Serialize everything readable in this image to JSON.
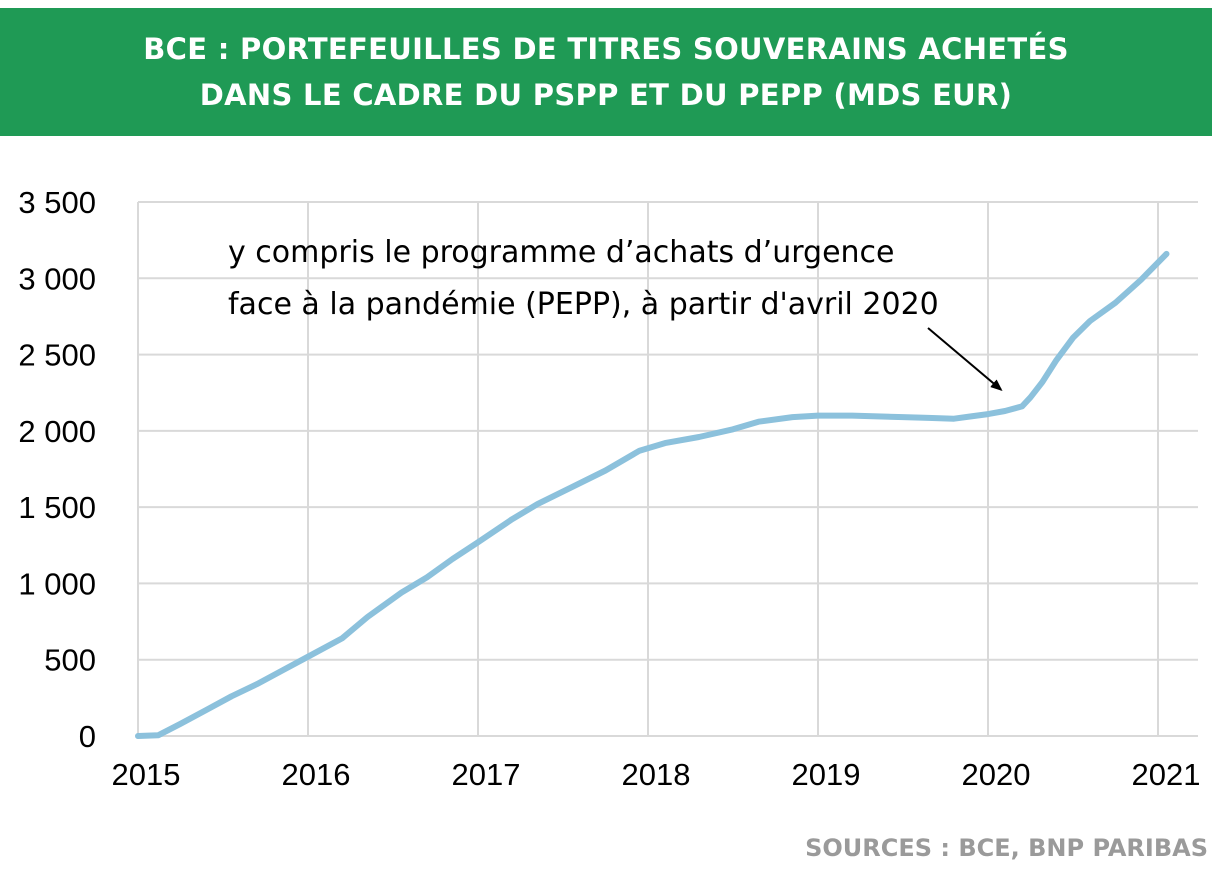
{
  "header": {
    "title_line1": "BCE : PORTEFEUILLES DE TITRES SOUVERAINS ACHETÉS",
    "title_line2": "DANS LE CADRE DU PSPP ET DU PEPP (MDS EUR)"
  },
  "footer": {
    "source": "SOURCES : BCE, BNP PARIBAS"
  },
  "chart_data": {
    "type": "line",
    "title": "BCE : PORTEFEUILLES DE TITRES SOUVERAINS ACHETÉS DANS LE CADRE DU PSPP ET DU PEPP (MDS EUR)",
    "xlabel": "",
    "ylabel": "",
    "xlim": [
      2015,
      2021.1
    ],
    "ylim": [
      0,
      3500
    ],
    "x_ticks": [
      "2015",
      "2016",
      "2017",
      "2018",
      "2019",
      "2020",
      "2021"
    ],
    "y_ticks": [
      "0",
      "500",
      "1 000",
      "1 500",
      "2 000",
      "2 500",
      "3 000",
      "3 500"
    ],
    "grid": true,
    "line_color": "#8cc1dc",
    "series": [
      {
        "name": "",
        "x": [
          2015.0,
          2015.12,
          2015.25,
          2015.4,
          2015.55,
          2015.7,
          2015.85,
          2016.0,
          2016.2,
          2016.35,
          2016.55,
          2016.7,
          2016.85,
          2017.0,
          2017.2,
          2017.35,
          2017.55,
          2017.75,
          2017.95,
          2018.1,
          2018.3,
          2018.5,
          2018.65,
          2018.85,
          2019.0,
          2019.2,
          2019.35,
          2019.5,
          2019.65,
          2019.8,
          2019.9,
          2020.0,
          2020.1,
          2020.2,
          2020.25,
          2020.32,
          2020.4,
          2020.5,
          2020.6,
          2020.75,
          2020.9,
          2021.05
        ],
        "values": [
          0,
          5,
          80,
          170,
          260,
          340,
          430,
          520,
          640,
          780,
          940,
          1040,
          1160,
          1270,
          1420,
          1520,
          1630,
          1740,
          1870,
          1920,
          1960,
          2010,
          2060,
          2090,
          2100,
          2100,
          2095,
          2090,
          2085,
          2080,
          2095,
          2110,
          2130,
          2160,
          2220,
          2320,
          2460,
          2610,
          2720,
          2840,
          2990,
          3160
        ]
      }
    ],
    "annotations": [
      {
        "text_line1": "y compris le programme d’achats d’urgence",
        "text_line2": "face à la pandémie (PEPP), à partir d'avril 2020",
        "arrow_to_x": 2020.1,
        "arrow_to_y": 2270
      }
    ]
  }
}
